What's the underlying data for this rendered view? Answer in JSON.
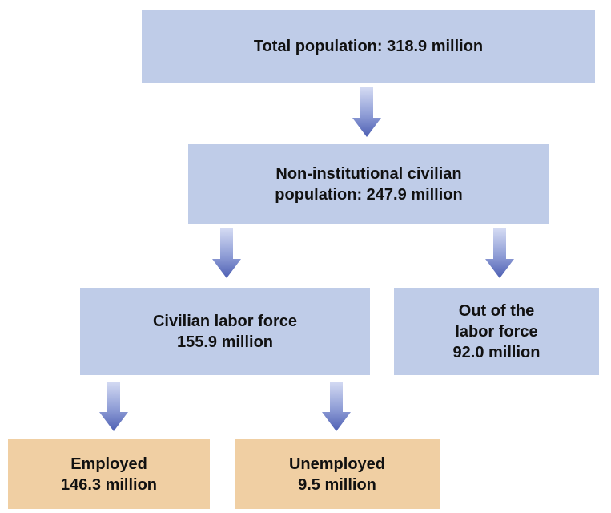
{
  "colors": {
    "population_box": "#bfcce8",
    "employment_box": "#f0cfa3",
    "arrow_light": "#c7d0ee",
    "arrow_dark": "#5466b7"
  },
  "diagram": {
    "total_population": "Total population: 318.9 million",
    "noninstitutional": {
      "line1": "Non-institutional civilian",
      "line2": "population: 247.9 million"
    },
    "labor_force": {
      "line1": "Civilian labor force",
      "line2": "155.9 million"
    },
    "out_of_labor_force": {
      "line1": "Out of the",
      "line2": "labor force",
      "line3": "92.0 million"
    },
    "employed": {
      "line1": "Employed",
      "line2": "146.3 million"
    },
    "unemployed": {
      "line1": "Unemployed",
      "line2": "9.5 million"
    }
  }
}
